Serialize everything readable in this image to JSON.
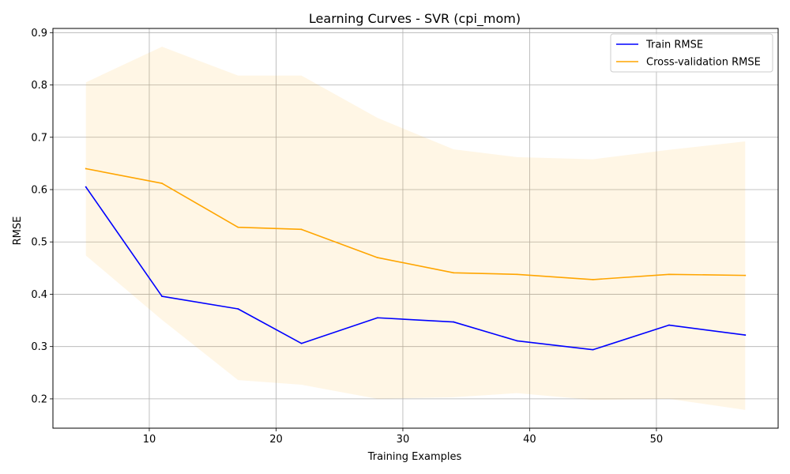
{
  "chart_data": {
    "type": "line",
    "title": "Learning Curves - SVR (cpi_mom)",
    "xlabel": "Training Examples",
    "ylabel": "RMSE",
    "xlim": [
      2.4,
      59.6
    ],
    "ylim": [
      0.144,
      0.908
    ],
    "xticks": [
      10,
      20,
      30,
      40,
      50
    ],
    "yticks": [
      0.2,
      0.3,
      0.4,
      0.5,
      0.6,
      0.7,
      0.8,
      0.9
    ],
    "x": [
      5,
      11,
      17,
      22,
      28,
      34,
      39,
      45,
      51,
      57
    ],
    "series": [
      {
        "name": "Train RMSE",
        "color": "#0000ff",
        "values": [
          0.605,
          0.396,
          0.372,
          0.306,
          0.355,
          0.347,
          0.311,
          0.294,
          0.341,
          0.322
        ]
      },
      {
        "name": "Cross-validation RMSE",
        "color": "#ffa500",
        "values": [
          0.64,
          0.612,
          0.528,
          0.524,
          0.47,
          0.441,
          0.438,
          0.428,
          0.438,
          0.436
        ],
        "band_upper": [
          0.805,
          0.873,
          0.818,
          0.818,
          0.737,
          0.677,
          0.662,
          0.658,
          0.676,
          0.692
        ],
        "band_lower": [
          0.474,
          0.351,
          0.236,
          0.227,
          0.2,
          0.203,
          0.211,
          0.198,
          0.2,
          0.179
        ],
        "band_color": "#ffa500",
        "band_opacity": 0.1
      }
    ],
    "grid": true,
    "legend_position": "top-right"
  }
}
